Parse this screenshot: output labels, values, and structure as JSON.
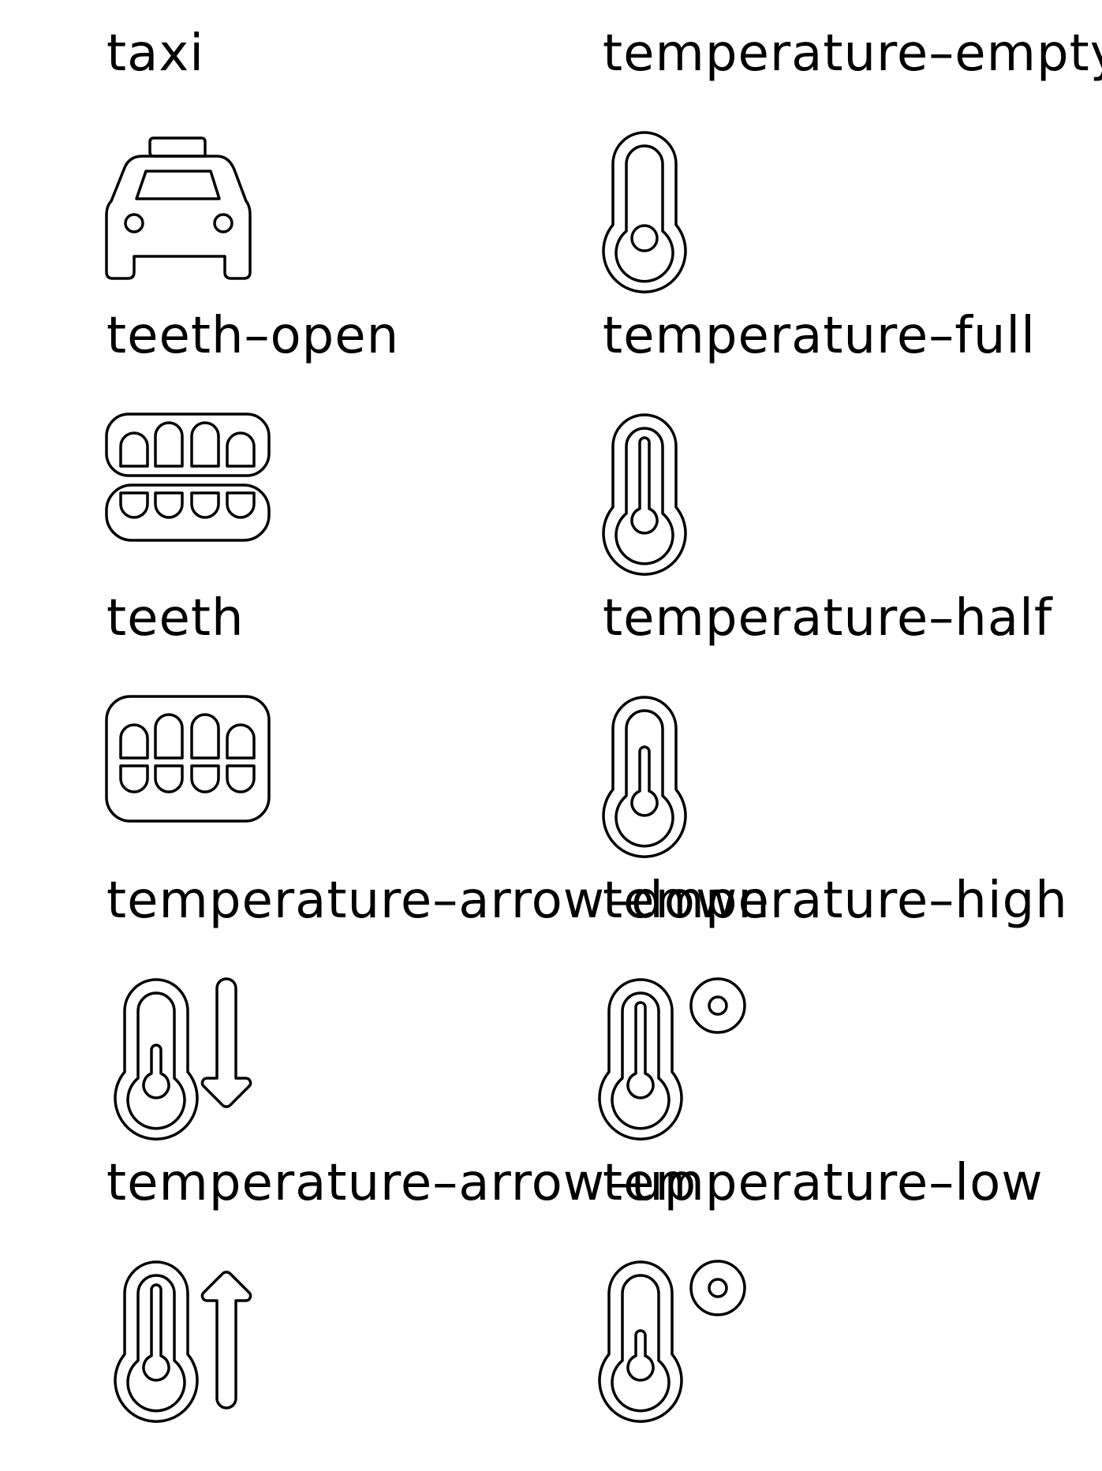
{
  "icons": [
    {
      "name": "taxi",
      "icon": "taxi-icon"
    },
    {
      "name": "temperature–empty",
      "icon": "temperature-empty-icon"
    },
    {
      "name": "teeth–open",
      "icon": "teeth-open-icon"
    },
    {
      "name": "temperature–full",
      "icon": "temperature-full-icon"
    },
    {
      "name": "teeth",
      "icon": "teeth-icon"
    },
    {
      "name": "temperature–half",
      "icon": "temperature-half-icon"
    },
    {
      "name": "temperature–arrow–down",
      "icon": "temperature-arrow-down-icon"
    },
    {
      "name": "temperature–high",
      "icon": "temperature-high-icon"
    },
    {
      "name": "temperature–arrow–up",
      "icon": "temperature-arrow-up-icon"
    },
    {
      "name": "temperature–low",
      "icon": "temperature-low-icon"
    }
  ]
}
